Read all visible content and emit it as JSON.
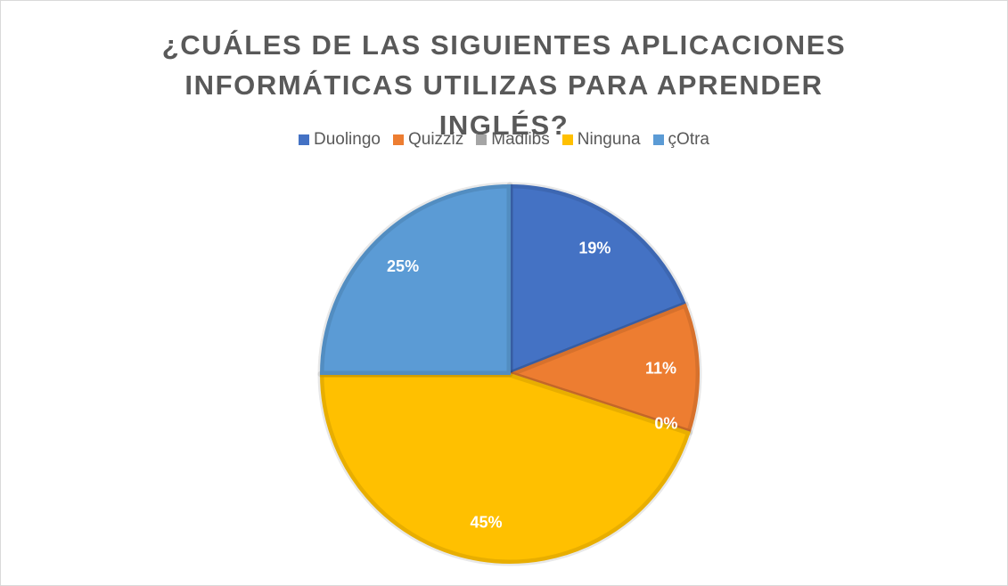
{
  "chart_data": {
    "type": "pie",
    "title": "¿CUÁLES DE LAS SIGUIENTES APLICACIONES INFORMÁTICAS UTILIZAS PARA APRENDER INGLÉS?",
    "categories": [
      "Duolingo",
      "Quizziz",
      "Madlibs",
      "Ninguna",
      "çOtra"
    ],
    "values": [
      19,
      11,
      0,
      45,
      25
    ],
    "value_labels": [
      "19%",
      "11%",
      "0%",
      "45%",
      "25%"
    ],
    "colors": [
      "#4472c4",
      "#ed7d31",
      "#a5a5a5",
      "#ffc000",
      "#5b9bd5"
    ],
    "legend": "top"
  }
}
